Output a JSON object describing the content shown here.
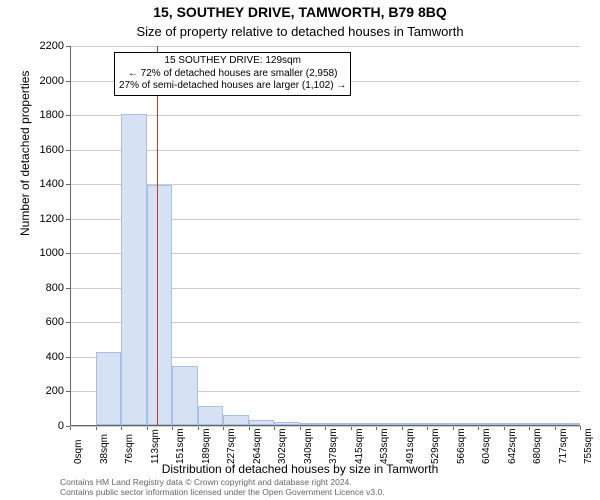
{
  "title_line1": "15, SOUTHEY DRIVE, TAMWORTH, B79 8BQ",
  "title_line2": "Size of property relative to detached houses in Tamworth",
  "ylabel": "Number of detached properties",
  "xlabel": "Distribution of detached houses by size in Tamworth",
  "footer_line1": "Contains HM Land Registry data © Crown copyright and database right 2024.",
  "footer_line2": "Contains public sector information licensed under the Open Government Licence v3.0.",
  "chart": {
    "type": "histogram",
    "background_color": "#ffffff",
    "grid_color": "#cccccc",
    "axis_color": "#666666",
    "bar_fill": "#d6e2f3",
    "bar_stroke": "#a9c0e6",
    "ref_line_color": "#c4372b",
    "ylim": [
      0,
      2200
    ],
    "ytick_step": 200,
    "yticks": [
      0,
      200,
      400,
      600,
      800,
      1000,
      1200,
      1400,
      1600,
      1800,
      2000,
      2200
    ],
    "xticks": [
      "0sqm",
      "38sqm",
      "76sqm",
      "113sqm",
      "151sqm",
      "189sqm",
      "227sqm",
      "264sqm",
      "302sqm",
      "340sqm",
      "378sqm",
      "415sqm",
      "453sqm",
      "491sqm",
      "529sqm",
      "566sqm",
      "604sqm",
      "642sqm",
      "680sqm",
      "717sqm",
      "755sqm"
    ],
    "values": [
      0,
      420,
      1800,
      1390,
      340,
      110,
      60,
      30,
      18,
      10,
      8,
      6,
      5,
      4,
      3,
      2,
      2,
      2,
      1,
      1
    ],
    "ref_sqm": 129,
    "x_max_sqm": 755
  },
  "annotation": {
    "line1": "15 SOUTHEY DRIVE: 129sqm",
    "line2": "← 72% of detached houses are smaller (2,958)",
    "line3": "27% of semi-detached houses are larger (1,102) →"
  }
}
